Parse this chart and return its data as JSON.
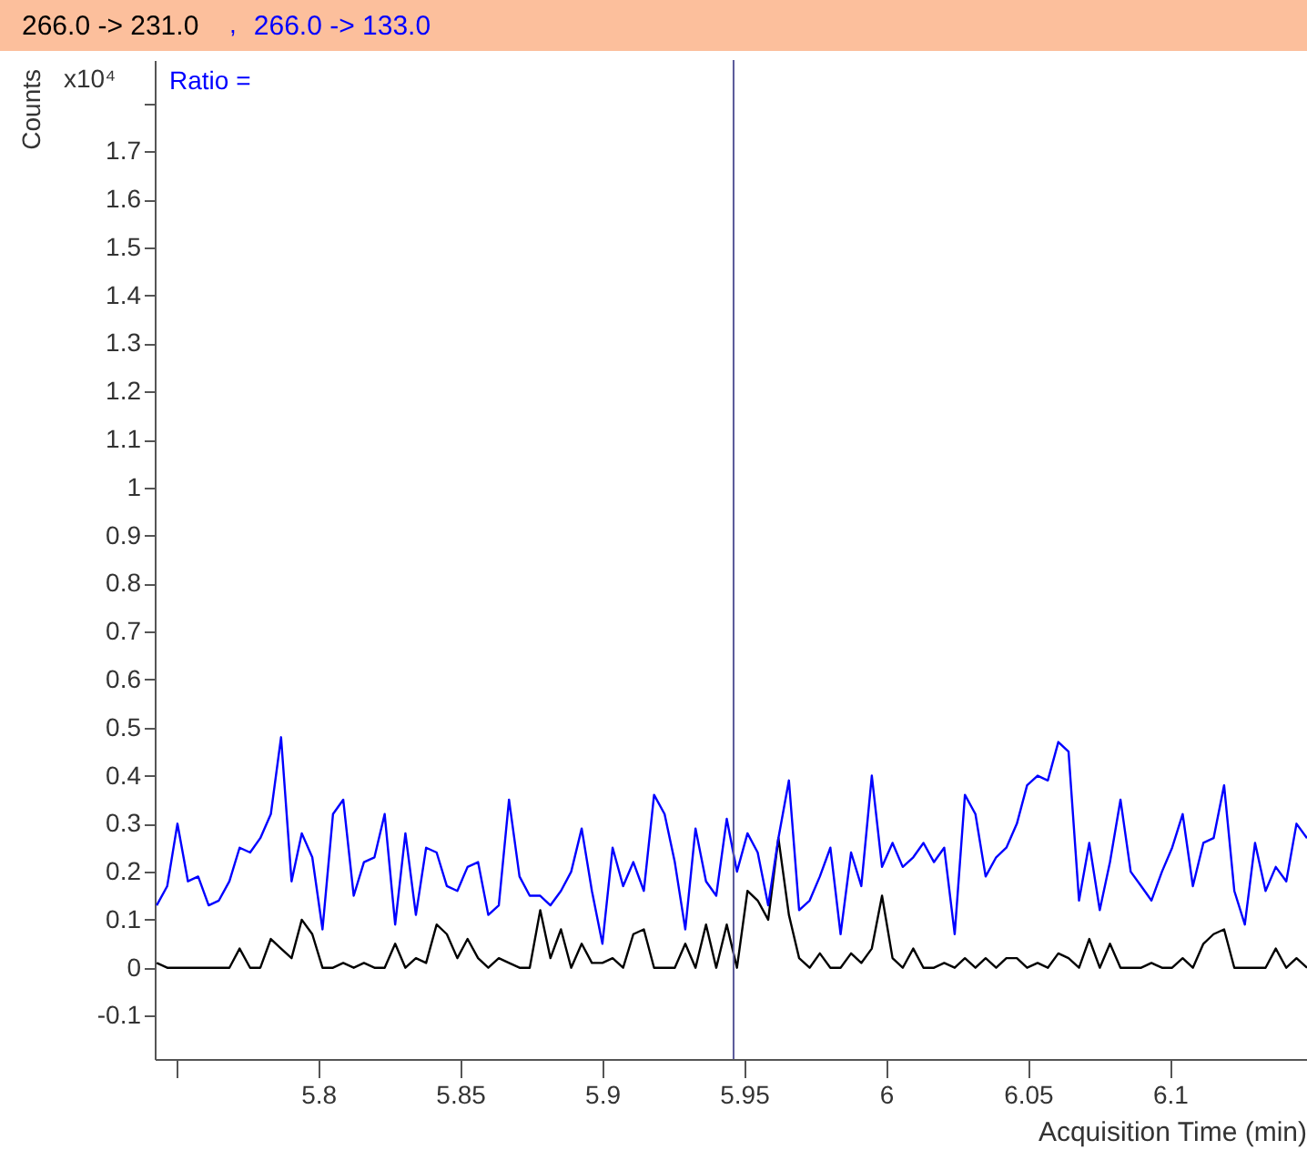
{
  "chart_data": {
    "type": "line",
    "ylabel": "Counts",
    "xlabel": "Acquisition Time (min)",
    "annotations": [
      "x10⁴",
      "Ratio =",
      ","
    ],
    "legend": "top",
    "grid": false,
    "marker": "none",
    "line_style": "solid",
    "x": [
      5.7431,
      5.7468,
      5.7504,
      5.7541,
      5.7577,
      5.7614,
      5.765,
      5.7687,
      5.7723,
      5.776,
      5.7796,
      5.7833,
      5.7869,
      5.7906,
      5.7942,
      5.7979,
      5.8015,
      5.8052,
      5.8088,
      5.8125,
      5.8161,
      5.8198,
      5.8234,
      5.8271,
      5.8307,
      5.8344,
      5.838,
      5.8417,
      5.8453,
      5.849,
      5.8526,
      5.8563,
      5.8599,
      5.8636,
      5.8672,
      5.8709,
      5.8745,
      5.8782,
      5.8818,
      5.8855,
      5.8891,
      5.8928,
      5.8964,
      5.9001,
      5.9037,
      5.9074,
      5.911,
      5.9147,
      5.9183,
      5.922,
      5.9256,
      5.9293,
      5.9329,
      5.9366,
      5.9402,
      5.9439,
      5.9475,
      5.9512,
      5.9548,
      5.9585,
      5.9621,
      5.9658,
      5.9694,
      5.9731,
      5.9767,
      5.9804,
      5.984,
      5.9877,
      5.9913,
      5.995,
      5.9986,
      6.0023,
      6.0059,
      6.0096,
      6.0132,
      6.0169,
      6.0205,
      6.0242,
      6.0278,
      6.0315,
      6.0351,
      6.0388,
      6.0424,
      6.0461,
      6.0497,
      6.0534,
      6.057,
      6.0607,
      6.0643,
      6.068,
      6.0716,
      6.0753,
      6.0789,
      6.0826,
      6.0862,
      6.0899,
      6.0935,
      6.0972,
      6.1008,
      6.1045,
      6.1081,
      6.1118,
      6.1154,
      6.1191,
      6.1227,
      6.1264,
      6.13,
      6.1337,
      6.1373,
      6.141,
      6.1446,
      6.1483
    ],
    "series": [
      {
        "name": "266.0 -> 231.0",
        "color": "#000000",
        "values": [
          0.01,
          0,
          0,
          0,
          0,
          0,
          0,
          0,
          0.04,
          0,
          0,
          0.06,
          0.04,
          0.02,
          0.1,
          0.07,
          0,
          0,
          0.01,
          0,
          0.01,
          0,
          0,
          0.05,
          0,
          0.02,
          0.01,
          0.09,
          0.07,
          0.02,
          0.06,
          0.02,
          0,
          0.02,
          0.01,
          0,
          0,
          0.12,
          0.02,
          0.08,
          0,
          0.05,
          0.01,
          0.01,
          0.02,
          0,
          0.07,
          0.08,
          0,
          0,
          0,
          0.05,
          0,
          0.09,
          0,
          0.09,
          0,
          0.16,
          0.14,
          0.1,
          0.27,
          0.11,
          0.02,
          0,
          0.03,
          0,
          0,
          0.03,
          0.01,
          0.04,
          0.15,
          0.02,
          0,
          0.04,
          0,
          0,
          0.01,
          0,
          0.02,
          0,
          0.02,
          0,
          0.02,
          0.02,
          0,
          0.01,
          0,
          0.03,
          0.02,
          0,
          0.06,
          0,
          0.05,
          0,
          0,
          0,
          0.01,
          0,
          0,
          0.02,
          0,
          0.05,
          0.07,
          0.08,
          0,
          0,
          0,
          0,
          0.04,
          0,
          0.02,
          0
        ]
      },
      {
        "name": "266.0 -> 133.0",
        "color": "#0000ff",
        "values": [
          0.13,
          0.17,
          0.3,
          0.18,
          0.19,
          0.13,
          0.14,
          0.18,
          0.25,
          0.24,
          0.27,
          0.32,
          0.48,
          0.18,
          0.28,
          0.23,
          0.08,
          0.32,
          0.35,
          0.15,
          0.22,
          0.23,
          0.32,
          0.09,
          0.28,
          0.11,
          0.25,
          0.24,
          0.17,
          0.16,
          0.21,
          0.22,
          0.11,
          0.13,
          0.35,
          0.19,
          0.15,
          0.15,
          0.13,
          0.16,
          0.2,
          0.29,
          0.16,
          0.05,
          0.25,
          0.17,
          0.22,
          0.16,
          0.36,
          0.32,
          0.22,
          0.08,
          0.29,
          0.18,
          0.15,
          0.31,
          0.2,
          0.28,
          0.24,
          0.13,
          0.27,
          0.39,
          0.12,
          0.14,
          0.19,
          0.25,
          0.07,
          0.24,
          0.17,
          0.4,
          0.21,
          0.26,
          0.21,
          0.23,
          0.26,
          0.22,
          0.25,
          0.07,
          0.36,
          0.32,
          0.19,
          0.23,
          0.25,
          0.3,
          0.38,
          0.4,
          0.39,
          0.47,
          0.45,
          0.14,
          0.26,
          0.12,
          0.22,
          0.35,
          0.2,
          0.17,
          0.14,
          0.2,
          0.25,
          0.32,
          0.17,
          0.26,
          0.27,
          0.38,
          0.16,
          0.09,
          0.26,
          0.16,
          0.21,
          0.18,
          0.3,
          0.27
        ]
      }
    ],
    "ref_lines": [
      {
        "axis": "x",
        "value": 5.9463,
        "color": "#5a5a9a"
      }
    ],
    "xlim": [
      5.7424,
      6.1483
    ],
    "xticks": [
      {
        "value": 5.75,
        "label": null
      },
      5.8,
      5.85,
      5.9,
      5.95,
      6,
      6.05,
      6.1
    ],
    "ylim": [
      -0.19,
      1.89
    ],
    "yticks": [
      -0.1,
      0,
      0.1,
      0.2,
      0.3,
      0.4,
      0.5,
      0.6,
      0.7,
      0.8,
      0.9,
      1,
      1.1,
      1.2,
      1.3,
      1.4,
      1.5,
      1.6,
      1.7,
      {
        "value": 1.8,
        "label": null
      }
    ]
  }
}
